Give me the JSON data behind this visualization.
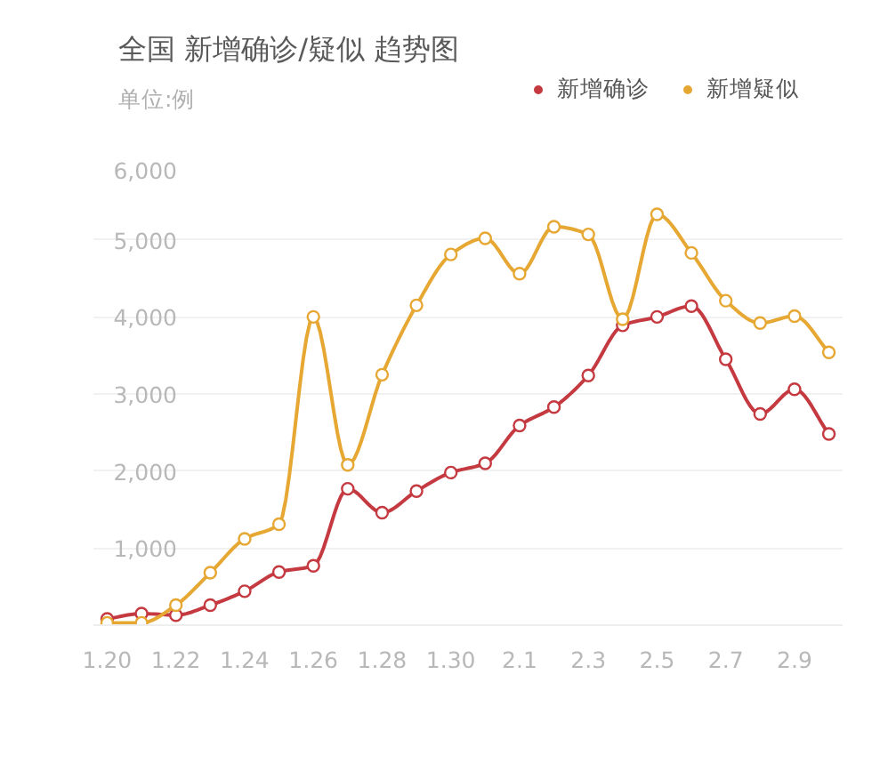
{
  "chart_data": {
    "type": "line",
    "title": "全国 新增确诊/疑似 趋势图",
    "subtitle": "单位:例",
    "categories": [
      "1.20",
      null,
      "1.22",
      null,
      "1.24",
      null,
      "1.26",
      null,
      "1.28",
      null,
      "1.30",
      null,
      "2.1",
      null,
      "2.3",
      null,
      "2.5",
      null,
      "2.7",
      null,
      "2.9",
      null
    ],
    "series": [
      {
        "name": "新增确诊",
        "color": "#c43a40",
        "values": [
          80,
          150,
          130,
          260,
          440,
          690,
          770,
          1770,
          1460,
          1740,
          1980,
          2100,
          2590,
          2830,
          3240,
          3890,
          4000,
          4140,
          3450,
          2740,
          3060,
          2480
        ]
      },
      {
        "name": "新增疑似",
        "color": "#e6a733",
        "values": [
          30,
          30,
          260,
          680,
          1120,
          1310,
          4000,
          2080,
          3250,
          4150,
          4810,
          5020,
          4560,
          5170,
          5070,
          3970,
          5330,
          4830,
          4210,
          3920,
          4010,
          3540
        ]
      }
    ],
    "ylim": [
      0,
      6000
    ],
    "yticks": [
      {
        "value": 1000,
        "label": "1,000"
      },
      {
        "value": 2000,
        "label": "2,000"
      },
      {
        "value": 3000,
        "label": "3,000"
      },
      {
        "value": 4000,
        "label": "4,000"
      },
      {
        "value": 5000,
        "label": "5,000"
      },
      {
        "value": 6000,
        "label": "6,000"
      }
    ],
    "grid": "y",
    "legend": "top right",
    "marker": "circle",
    "line_style": "solid"
  }
}
